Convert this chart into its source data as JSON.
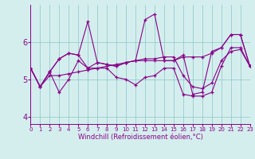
{
  "xlabel": "Windchill (Refroidissement éolien,°C)",
  "background_color": "#d4eeee",
  "line_color": "#880088",
  "grid_color": "#99cccc",
  "x": [
    0,
    1,
    2,
    3,
    4,
    5,
    6,
    7,
    8,
    9,
    10,
    11,
    12,
    13,
    14,
    15,
    16,
    17,
    18,
    19,
    20,
    21,
    22,
    23
  ],
  "series_A": [
    5.3,
    4.8,
    5.2,
    5.55,
    5.7,
    5.65,
    5.3,
    5.45,
    5.4,
    5.35,
    5.45,
    5.5,
    5.5,
    5.5,
    5.5,
    5.5,
    5.6,
    5.6,
    5.6,
    5.7,
    5.85,
    6.2,
    6.2,
    5.35
  ],
  "series_B": [
    5.3,
    4.8,
    5.2,
    5.55,
    5.7,
    5.65,
    6.55,
    5.45,
    5.4,
    5.35,
    5.45,
    5.5,
    6.6,
    6.75,
    5.5,
    5.5,
    5.65,
    4.6,
    4.65,
    5.75,
    5.85,
    6.2,
    6.2,
    5.35
  ],
  "series_C": [
    5.3,
    4.8,
    5.2,
    4.65,
    5.0,
    5.5,
    5.3,
    5.3,
    5.3,
    5.05,
    5.0,
    4.85,
    5.05,
    5.1,
    5.3,
    5.3,
    4.6,
    4.55,
    4.55,
    4.65,
    5.35,
    5.85,
    5.85,
    5.35
  ],
  "series_D": [
    5.3,
    4.8,
    5.1,
    5.1,
    5.15,
    5.2,
    5.25,
    5.3,
    5.35,
    5.4,
    5.45,
    5.5,
    5.55,
    5.55,
    5.6,
    5.6,
    5.1,
    4.8,
    4.75,
    4.9,
    5.5,
    5.75,
    5.8,
    5.35
  ],
  "ylim": [
    3.8,
    7.0
  ],
  "yticks": [
    4,
    5,
    6
  ],
  "xlim": [
    0,
    23
  ]
}
